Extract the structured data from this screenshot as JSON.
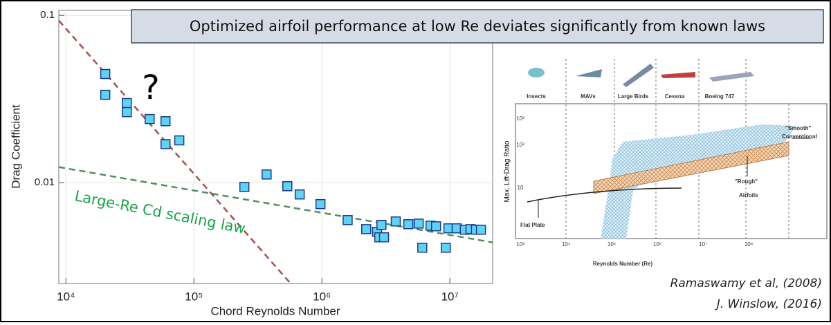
{
  "banner": "Optimized airfoil performance at low Re deviates significantly from known laws",
  "chart_data": {
    "type": "scatter",
    "xlabel": "Chord Reynolds Number",
    "ylabel": "Drag Coefficient",
    "xscale": "log",
    "yscale": "log",
    "grid": true,
    "xlim": [
      8800,
      21600000
    ],
    "ylim": [
      0.0025,
      0.107
    ],
    "xticks": [
      {
        "value": 10000,
        "label": "10⁴"
      },
      {
        "value": 100000,
        "label": "10⁵"
      },
      {
        "value": 1000000,
        "label": "10⁶"
      },
      {
        "value": 10000000,
        "label": "10⁷"
      }
    ],
    "yticks": [
      0.01,
      0.1
    ],
    "series": [
      {
        "mode": "line",
        "color": "#a0524f",
        "dash": true,
        "x": [
          8800,
          570000
        ],
        "values": [
          0.093,
          0.0025
        ]
      },
      {
        "mode": "line",
        "color": "#4f8f5f",
        "dash": true,
        "x": [
          8800,
          21600000
        ],
        "values": [
          0.0124,
          0.0044
        ]
      },
      {
        "mode": "markers",
        "color": "#5fd3f3",
        "x": [
          20300,
          20300,
          29900,
          29900,
          45100,
          60000,
          60000,
          76900,
          248000,
          370000,
          537000,
          671000,
          975000,
          1590000,
          2220000,
          2700000,
          2810000,
          2920000,
          3060000,
          3780000,
          4740000,
          5710000,
          6090000,
          7060000,
          7800000,
          9290000,
          9750000,
          11300000,
          13100000,
          14500000,
          16000000,
          17500000
        ],
        "values": [
          0.0446,
          0.0335,
          0.0299,
          0.0264,
          0.024,
          0.0233,
          0.017,
          0.0179,
          0.00944,
          0.0112,
          0.00953,
          0.00851,
          0.00745,
          0.00598,
          0.00528,
          0.00509,
          0.00472,
          0.0056,
          0.00472,
          0.00587,
          0.00565,
          0.0057,
          0.00409,
          0.00554,
          0.00549,
          0.00409,
          0.00534,
          0.00534,
          0.00524,
          0.00528,
          0.00524,
          0.00524
        ]
      }
    ],
    "annotations": [
      {
        "text": "?"
      },
      {
        "text": "Large-Re Cd scaling law",
        "color": "#1aa34a"
      }
    ]
  },
  "inset_figure": {
    "ylabel": "Max. Lift-Drag Ratio",
    "xlabel": "Reynolds Number (Re)",
    "classes": [
      "Insects",
      "MAVs",
      "Large Birds",
      "Cessna",
      "Boeing 747"
    ],
    "xticks": [
      "10³",
      "10⁴",
      "10⁵",
      "10⁶",
      "10⁷",
      "10⁸"
    ],
    "yticks": [
      "10",
      "10²",
      "10³"
    ],
    "labels": [
      "\"Smooth\"",
      "Conventional",
      "\"Rough\"",
      "Airfoils",
      "Flat Plate"
    ]
  },
  "citations": [
    "Ramaswamy et al, (2008)",
    "J. Winslow, (2016)"
  ]
}
